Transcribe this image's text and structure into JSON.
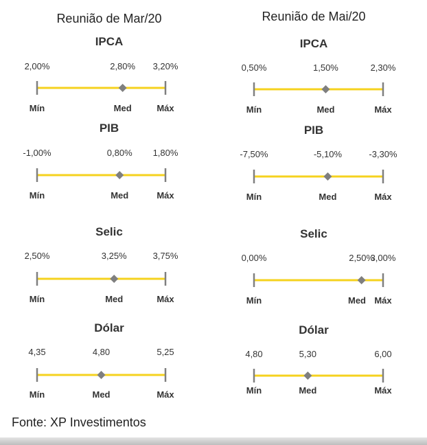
{
  "source": "Fonte: XP Investimentos",
  "colors": {
    "line": "#F5D21E",
    "tick": "#7f7f7f",
    "marker": "#7f7f7f"
  },
  "chart_data": [
    {
      "type": "range",
      "title": "Reunião de Mar/20",
      "indicators": [
        {
          "name": "IPCA",
          "min": 2.0,
          "med": 2.8,
          "max": 3.2,
          "labels": [
            "2,00%",
            "2,80%",
            "3,20%"
          ],
          "ends": [
            "Mín",
            "Med",
            "Máx"
          ]
        },
        {
          "name": "PIB",
          "min": -1.0,
          "med": 0.8,
          "max": 1.8,
          "labels": [
            "-1,00%",
            "0,80%",
            "1,80%"
          ],
          "ends": [
            "Mín",
            "Med",
            "Máx"
          ]
        },
        {
          "name": "Selic",
          "min": 2.5,
          "med": 3.25,
          "max": 3.75,
          "labels": [
            "2,50%",
            "3,25%",
            "3,75%"
          ],
          "ends": [
            "Mín",
            "Med",
            "Máx"
          ]
        },
        {
          "name": "Dólar",
          "min": 4.35,
          "med": 4.8,
          "max": 5.25,
          "labels": [
            "4,35",
            "4,80",
            "5,25"
          ],
          "ends": [
            "Mín",
            "Med",
            "Máx"
          ]
        }
      ]
    },
    {
      "type": "range",
      "title": "Reunião de Mai/20",
      "indicators": [
        {
          "name": "IPCA",
          "min": 0.5,
          "med": 1.5,
          "max": 2.3,
          "labels": [
            "0,50%",
            "1,50%",
            "2,30%"
          ],
          "ends": [
            "Mín",
            "Med",
            "Máx"
          ]
        },
        {
          "name": "PIB",
          "min": -7.5,
          "med": -5.1,
          "max": -3.3,
          "labels": [
            "-7,50%",
            "-5,10%",
            "-3,30%"
          ],
          "ends": [
            "Mín",
            "Med",
            "Máx"
          ]
        },
        {
          "name": "Selic",
          "min": 0.0,
          "med": 2.5,
          "max": 3.0,
          "labels": [
            "0,00%",
            "2,50%",
            "3,00%"
          ],
          "ends": [
            "Mín",
            "Med",
            "Máx"
          ]
        },
        {
          "name": "Dólar",
          "min": 4.8,
          "med": 5.3,
          "max": 6.0,
          "labels": [
            "4,80",
            "5,30",
            "6,00"
          ],
          "ends": [
            "Mín",
            "Med",
            "Máx"
          ]
        }
      ]
    }
  ]
}
